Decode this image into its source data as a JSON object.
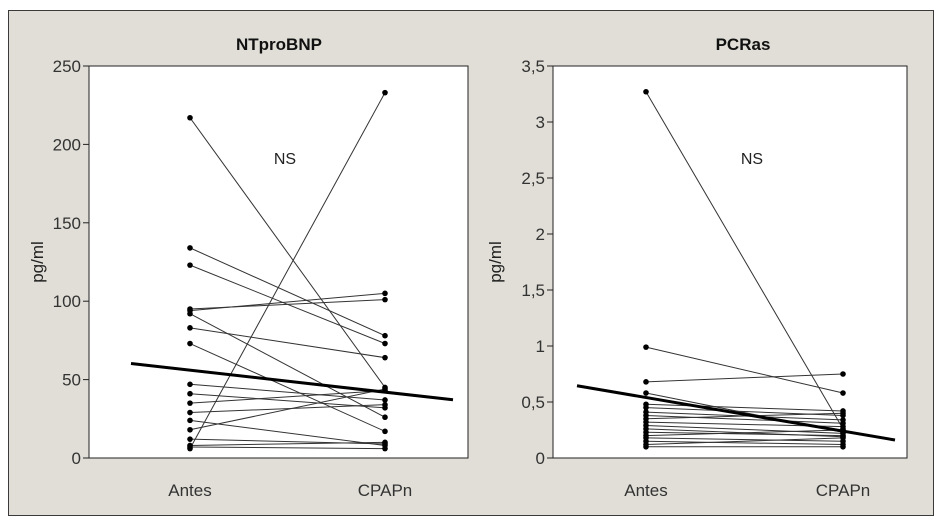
{
  "chart_data": [
    {
      "type": "line",
      "title": "NTproBNP",
      "ylabel": "pg/ml",
      "xlabel": "",
      "categories": [
        "Antes",
        "CPAPn"
      ],
      "ylim": [
        0,
        250
      ],
      "yticks": [
        "0",
        "50",
        "100",
        "150",
        "200",
        "250"
      ],
      "annotation": "NS",
      "trend": [
        56,
        42
      ],
      "pairs": [
        [
          217,
          45
        ],
        [
          134,
          78
        ],
        [
          123,
          73
        ],
        [
          95,
          101
        ],
        [
          94,
          105
        ],
        [
          92,
          26
        ],
        [
          83,
          64
        ],
        [
          73,
          17
        ],
        [
          47,
          37
        ],
        [
          41,
          32
        ],
        [
          35,
          43
        ],
        [
          29,
          34
        ],
        [
          24,
          8
        ],
        [
          18,
          44
        ],
        [
          12,
          9
        ],
        [
          8,
          10
        ],
        [
          7,
          6
        ],
        [
          6,
          233
        ]
      ]
    },
    {
      "type": "line",
      "title": "PCRas",
      "ylabel": "pg/ml",
      "xlabel": "",
      "categories": [
        "Antes",
        "CPAPn"
      ],
      "ylim": [
        0,
        3.5
      ],
      "yticks": [
        "0",
        "0,5",
        "1",
        "1,5",
        "2",
        "2,5",
        "3",
        "3,5"
      ],
      "annotation": "NS",
      "trend": [
        0.54,
        0.24
      ],
      "pairs": [
        [
          3.27,
          0.26
        ],
        [
          0.99,
          0.58
        ],
        [
          0.68,
          0.75
        ],
        [
          0.58,
          0.23
        ],
        [
          0.48,
          0.42
        ],
        [
          0.45,
          0.38
        ],
        [
          0.41,
          0.34
        ],
        [
          0.38,
          0.31
        ],
        [
          0.35,
          0.4
        ],
        [
          0.32,
          0.28
        ],
        [
          0.29,
          0.22
        ],
        [
          0.26,
          0.19
        ],
        [
          0.23,
          0.2
        ],
        [
          0.2,
          0.25
        ],
        [
          0.18,
          0.15
        ],
        [
          0.15,
          0.12
        ],
        [
          0.12,
          0.18
        ],
        [
          0.1,
          0.1
        ]
      ]
    }
  ]
}
